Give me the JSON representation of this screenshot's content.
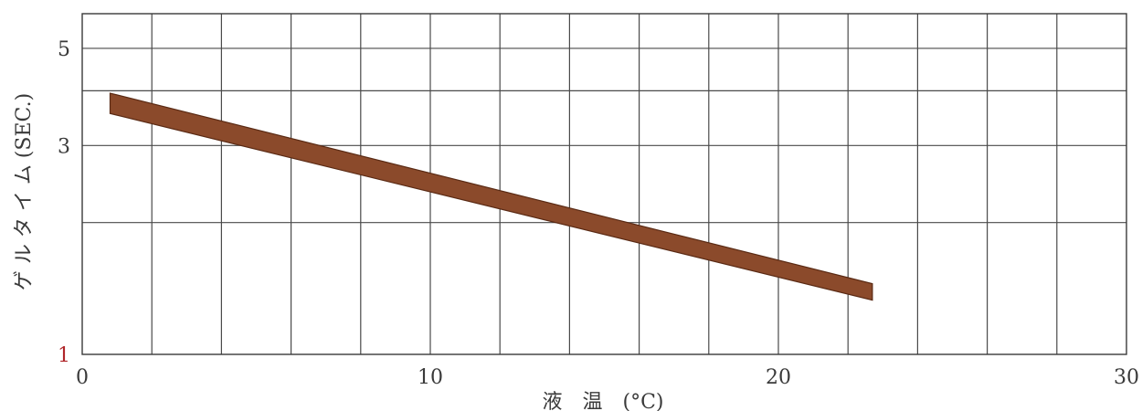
{
  "chart_data": {
    "type": "area",
    "title": "",
    "xlabel": "液　温　(°C)",
    "ylabel": "ゲ ル タ イ ム (SEC.)",
    "x_ticks": [
      "0",
      "10",
      "20",
      "30"
    ],
    "y_ticks": [
      "1",
      "3",
      "5"
    ],
    "xlim": [
      0,
      30
    ],
    "ylim": [
      1,
      6
    ],
    "y_scale": "log",
    "grid": true,
    "band_color": "#8b4a2b",
    "band_edge_color": "#5a2a14",
    "accent_tick_color": "#b0262a",
    "series": [
      {
        "x": [
          0.8,
          22.7
        ],
        "upper": [
          3.95,
          1.45
        ],
        "lower": [
          3.55,
          1.33
        ]
      }
    ]
  }
}
